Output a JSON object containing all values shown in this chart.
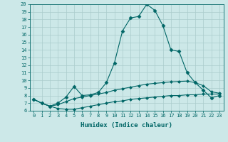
{
  "title": "",
  "xlabel": "Humidex (Indice chaleur)",
  "background_color": "#cce8e8",
  "grid_color": "#aacccc",
  "line_color": "#006666",
  "xlim": [
    -0.5,
    23.5
  ],
  "ylim": [
    6,
    20
  ],
  "xticks": [
    0,
    1,
    2,
    3,
    4,
    5,
    6,
    7,
    8,
    9,
    10,
    11,
    12,
    13,
    14,
    15,
    16,
    17,
    18,
    19,
    20,
    21,
    22,
    23
  ],
  "yticks": [
    6,
    7,
    8,
    9,
    10,
    11,
    12,
    13,
    14,
    15,
    16,
    17,
    18,
    19,
    20
  ],
  "series": [
    {
      "x": [
        0,
        1,
        2,
        3,
        4,
        5,
        6,
        7,
        8,
        9,
        10,
        11,
        12,
        13,
        14,
        15,
        16,
        17,
        18,
        19,
        20,
        21,
        22,
        23
      ],
      "y": [
        7.5,
        7.0,
        6.6,
        6.3,
        6.2,
        6.2,
        6.4,
        6.6,
        6.8,
        7.0,
        7.2,
        7.3,
        7.5,
        7.6,
        7.7,
        7.8,
        7.9,
        8.0,
        8.0,
        8.1,
        8.1,
        8.2,
        8.2,
        8.2
      ],
      "marker": "D",
      "markersize": 2,
      "linewidth": 0.8
    },
    {
      "x": [
        0,
        1,
        2,
        3,
        4,
        5,
        6,
        7,
        8,
        9,
        10,
        11,
        12,
        13,
        14,
        15,
        16,
        17,
        18,
        19,
        20,
        21,
        22,
        23
      ],
      "y": [
        7.5,
        7.0,
        6.6,
        6.8,
        7.2,
        7.6,
        7.8,
        8.0,
        8.2,
        8.4,
        8.7,
        8.9,
        9.1,
        9.3,
        9.5,
        9.6,
        9.7,
        9.8,
        9.85,
        9.9,
        9.7,
        9.3,
        8.5,
        8.3
      ],
      "marker": "D",
      "markersize": 2,
      "linewidth": 0.8
    },
    {
      "x": [
        0,
        1,
        2,
        3,
        4,
        5,
        6,
        7,
        8,
        9,
        10,
        11,
        12,
        13,
        14,
        15,
        16,
        17,
        18,
        19,
        20,
        21,
        22,
        23
      ],
      "y": [
        7.5,
        7.0,
        6.6,
        7.0,
        7.8,
        9.2,
        8.0,
        8.1,
        8.4,
        9.7,
        12.3,
        16.5,
        18.2,
        18.4,
        20.0,
        19.2,
        17.2,
        14.0,
        13.8,
        11.0,
        9.7,
        8.7,
        7.7,
        8.0
      ],
      "marker": "D",
      "markersize": 2.5,
      "linewidth": 0.8
    }
  ]
}
